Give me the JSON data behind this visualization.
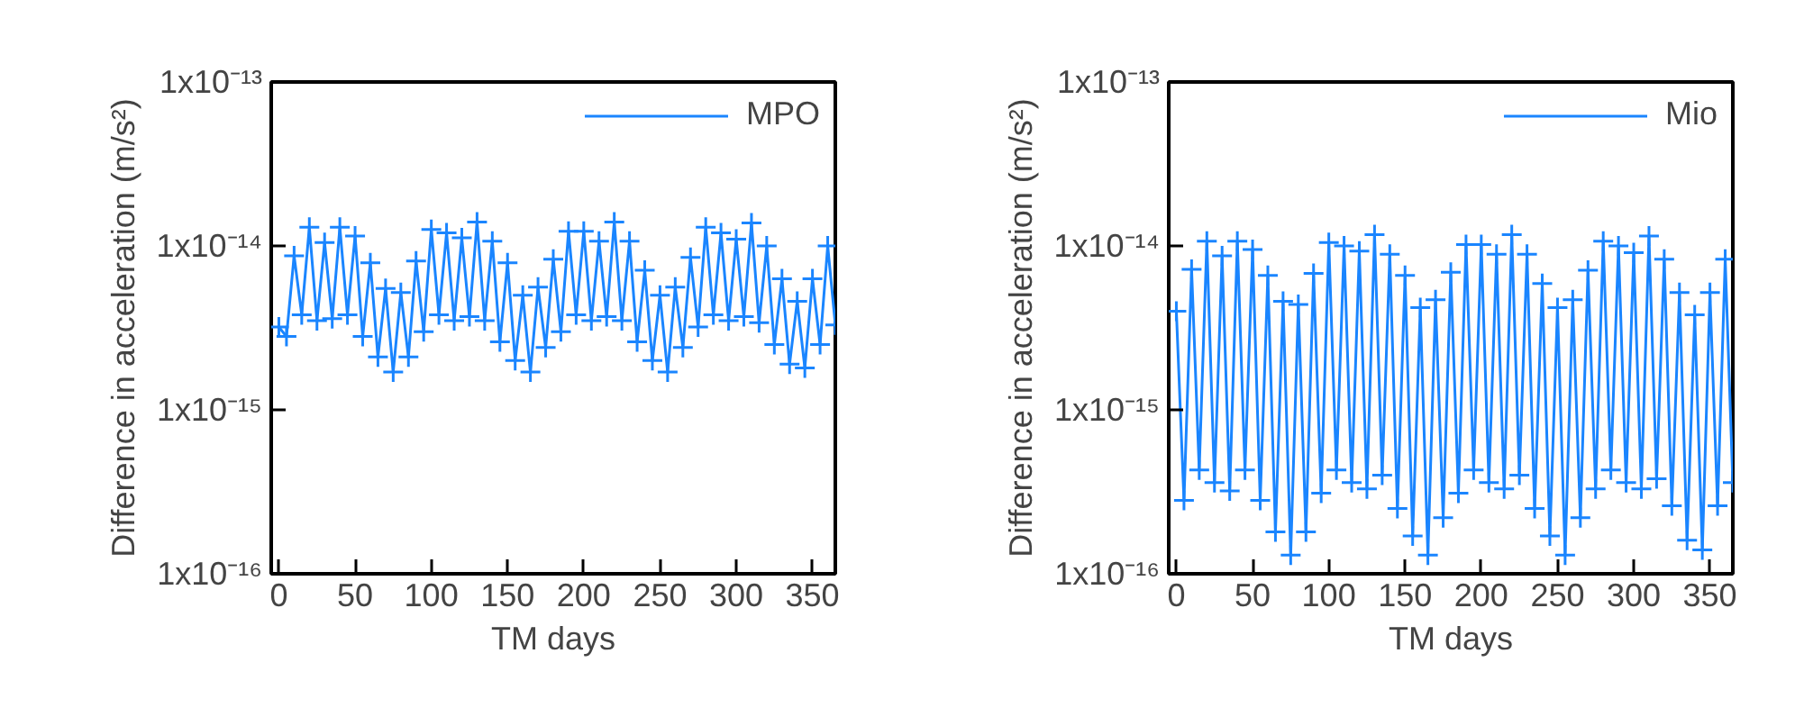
{
  "chart_data": [
    {
      "type": "line",
      "xlabel": "TM days",
      "ylabel": "Difference in acceleration (m/s²)",
      "log": "y",
      "legend": "top right",
      "marker": "cross",
      "line_style": "solid",
      "grid": false,
      "x": [
        0,
        5,
        10,
        15,
        20,
        25,
        30,
        35,
        40,
        45,
        50,
        55,
        60,
        65,
        70,
        75,
        80,
        85,
        90,
        95,
        100,
        105,
        110,
        115,
        120,
        125,
        130,
        135,
        140,
        145,
        150,
        155,
        160,
        165,
        170,
        175,
        180,
        185,
        190,
        195,
        200,
        205,
        210,
        215,
        220,
        225,
        230,
        235,
        240,
        245,
        250,
        255,
        260,
        265,
        270,
        275,
        280,
        285,
        290,
        295,
        300,
        305,
        310,
        315,
        320,
        325,
        330,
        335,
        340,
        345,
        350,
        355,
        360,
        365
      ],
      "xlim": [
        -5,
        365
      ],
      "xticks": [
        0,
        50,
        100,
        150,
        200,
        250,
        300,
        350
      ],
      "ylim": [
        1e-16,
        1e-13
      ],
      "yticks": [
        {
          "value": 1e-16,
          "label": "1x10⁻¹⁶"
        },
        {
          "value": 1e-15,
          "label": "1x10⁻¹⁵"
        },
        {
          "value": 1e-14,
          "label": "1x10⁻¹⁴"
        },
        {
          "value": 1e-13,
          "label": "1x10⁻¹³"
        }
      ],
      "series": [
        {
          "name": "MPO",
          "color": "#1a85ff",
          "values": [
            3.2e-15,
            2.8e-15,
            8.7e-15,
            3.8e-15,
            1.3e-14,
            3.5e-15,
            1.05e-14,
            3.6e-15,
            1.3e-14,
            3.8e-15,
            1.15e-14,
            2.8e-15,
            7.9e-15,
            2.1e-15,
            5.5e-15,
            1.7e-15,
            5.2e-15,
            2.1e-15,
            8.1e-15,
            3e-15,
            1.26e-14,
            3.8e-15,
            1.2e-14,
            3.5e-15,
            1.12e-14,
            3.7e-15,
            1.4e-14,
            3.5e-15,
            1.07e-14,
            2.6e-15,
            7.9e-15,
            2e-15,
            5e-15,
            1.7e-15,
            5.6e-15,
            2.4e-15,
            8.3e-15,
            3e-15,
            1.23e-14,
            3.8e-15,
            1.23e-14,
            3.5e-15,
            1.07e-14,
            3.7e-15,
            1.4e-14,
            3.5e-15,
            1.07e-14,
            2.6e-15,
            7.1e-15,
            2e-15,
            5e-15,
            1.7e-15,
            5.6e-15,
            2.4e-15,
            8.5e-15,
            3.2e-15,
            1.3e-14,
            3.8e-15,
            1.2e-14,
            3.5e-15,
            1.1e-14,
            3.7e-15,
            1.38e-14,
            3.4e-15,
            1e-14,
            2.5e-15,
            6.3e-15,
            1.9e-15,
            4.6e-15,
            1.8e-15,
            6.3e-15,
            2.5e-15,
            1e-14,
            3.3e-15
          ]
        }
      ]
    },
    {
      "type": "line",
      "xlabel": "TM days",
      "ylabel": "Difference in acceleration (m/s²)",
      "log": "y",
      "legend": "top right",
      "marker": "cross",
      "line_style": "solid",
      "grid": false,
      "x": [
        0,
        5,
        10,
        15,
        20,
        25,
        30,
        35,
        40,
        45,
        50,
        55,
        60,
        65,
        70,
        75,
        80,
        85,
        90,
        95,
        100,
        105,
        110,
        115,
        120,
        125,
        130,
        135,
        140,
        145,
        150,
        155,
        160,
        165,
        170,
        175,
        180,
        185,
        190,
        195,
        200,
        205,
        210,
        215,
        220,
        225,
        230,
        235,
        240,
        245,
        250,
        255,
        260,
        265,
        270,
        275,
        280,
        285,
        290,
        295,
        300,
        305,
        310,
        315,
        320,
        325,
        330,
        335,
        340,
        345,
        350,
        355,
        360,
        365
      ],
      "xlim": [
        -5,
        365
      ],
      "xticks": [
        0,
        50,
        100,
        150,
        200,
        250,
        300,
        350
      ],
      "ylim": [
        1e-16,
        1e-13
      ],
      "yticks": [
        {
          "value": 1e-16,
          "label": "1x10⁻¹⁶"
        },
        {
          "value": 1e-15,
          "label": "1x10⁻¹⁵"
        },
        {
          "value": 1e-14,
          "label": "1x10⁻¹⁴"
        },
        {
          "value": 1e-13,
          "label": "1x10⁻¹³"
        }
      ],
      "series": [
        {
          "name": "Mio",
          "color": "#1a85ff",
          "values": [
            4e-15,
            2.8e-16,
            7.2e-15,
            4.3e-16,
            1.07e-14,
            3.6e-16,
            8.7e-15,
            3.2e-16,
            1.07e-14,
            4.3e-16,
            9.5e-15,
            2.8e-16,
            6.6e-15,
            1.8e-16,
            4.6e-15,
            1.3e-16,
            4.4e-15,
            1.8e-16,
            6.8e-15,
            3.1e-16,
            1.05e-14,
            4.3e-16,
            1e-14,
            3.6e-16,
            9.3e-15,
            3.3e-16,
            1.17e-14,
            4e-16,
            8.9e-15,
            2.5e-16,
            6.6e-15,
            1.7e-16,
            4.2e-15,
            1.3e-16,
            4.7e-15,
            2.2e-16,
            6.9e-15,
            3.1e-16,
            1.02e-14,
            4.3e-16,
            1.02e-14,
            3.6e-16,
            8.9e-15,
            3.3e-16,
            1.17e-14,
            4e-16,
            8.9e-15,
            2.5e-16,
            5.9e-15,
            1.7e-16,
            4.2e-15,
            1.3e-16,
            4.7e-15,
            2.2e-16,
            7.1e-15,
            3.3e-16,
            1.07e-14,
            4.3e-16,
            1e-14,
            3.6e-16,
            9.1e-15,
            3.3e-16,
            1.15e-14,
            3.8e-16,
            8.3e-15,
            2.6e-16,
            5.2e-15,
            1.6e-16,
            3.8e-15,
            1.4e-16,
            5.2e-15,
            2.6e-16,
            8.3e-15,
            3.6e-16
          ]
        }
      ]
    }
  ]
}
